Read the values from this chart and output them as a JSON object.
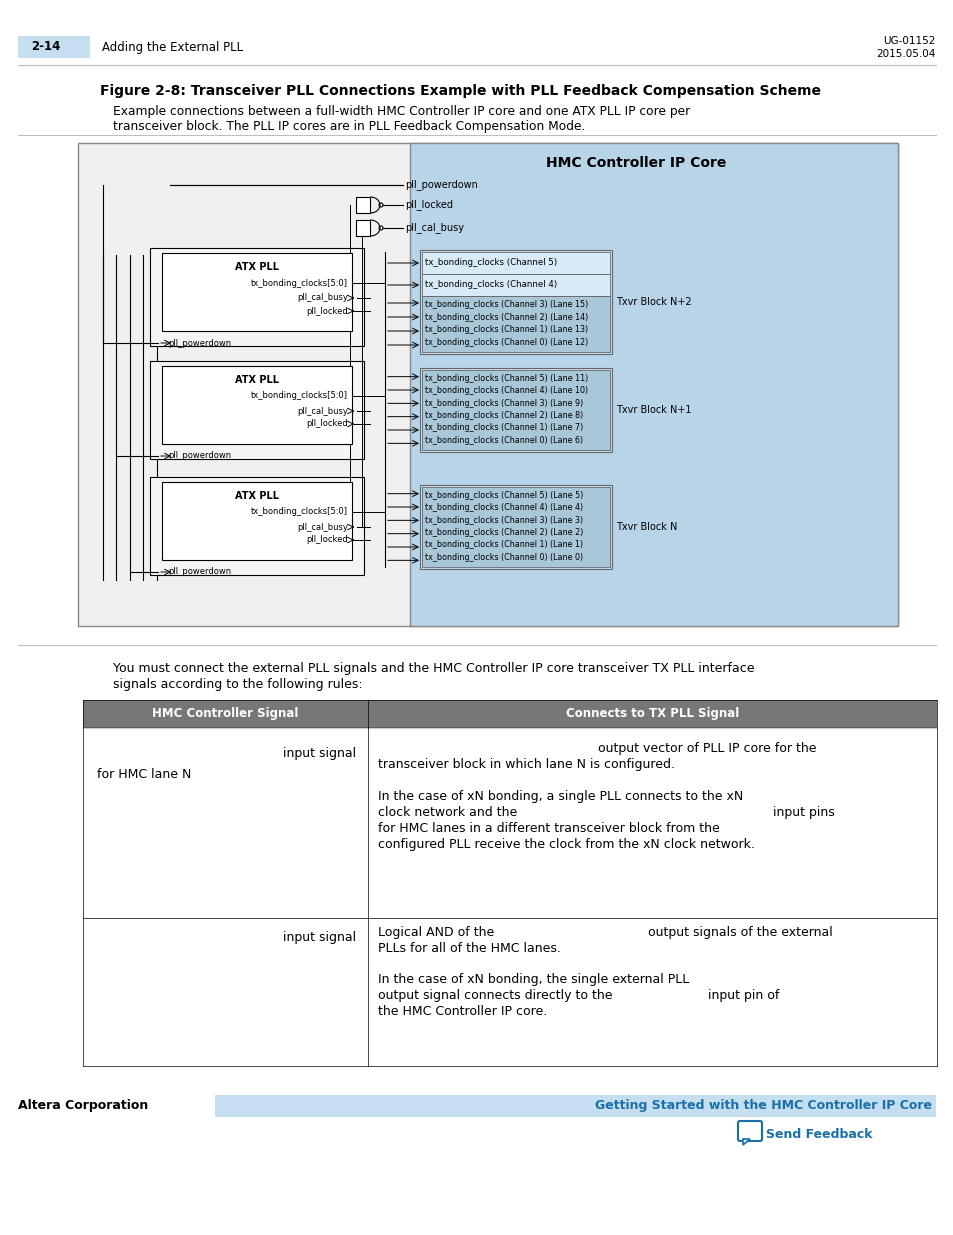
{
  "page_bg": "#ffffff",
  "header_bar_color": "#c5dff0",
  "header_number": "2-14",
  "header_title": "Adding the External PLL",
  "header_right1": "UG-01152",
  "header_right2": "2015.05.04",
  "figure_title": "Figure 2-8: Transceiver PLL Connections Example with PLL Feedback Compensation Scheme",
  "figure_caption1": "Example connections between a full-width HMC Controller IP core and one ATX PLL IP core per",
  "figure_caption2": "transceiver block. The PLL IP cores are in PLL Feedback Compensation Mode.",
  "para_text1": "You must connect the external PLL signals and the HMC Controller IP core transceiver TX PLL interface",
  "para_text2": "signals according to the following rules:",
  "table_header_bg": "#777777",
  "table_header_color": "#ffffff",
  "table_col1_header": "HMC Controller Signal",
  "table_col2_header": "Connects to TX PLL Signal",
  "footer_left": "Altera Corporation",
  "footer_right": "Getting Started with the HMC Controller IP Core",
  "footer_feedback": "Send Feedback",
  "footer_bar_color": "#c5dff0",
  "footer_text_color": "#1a6fa8"
}
